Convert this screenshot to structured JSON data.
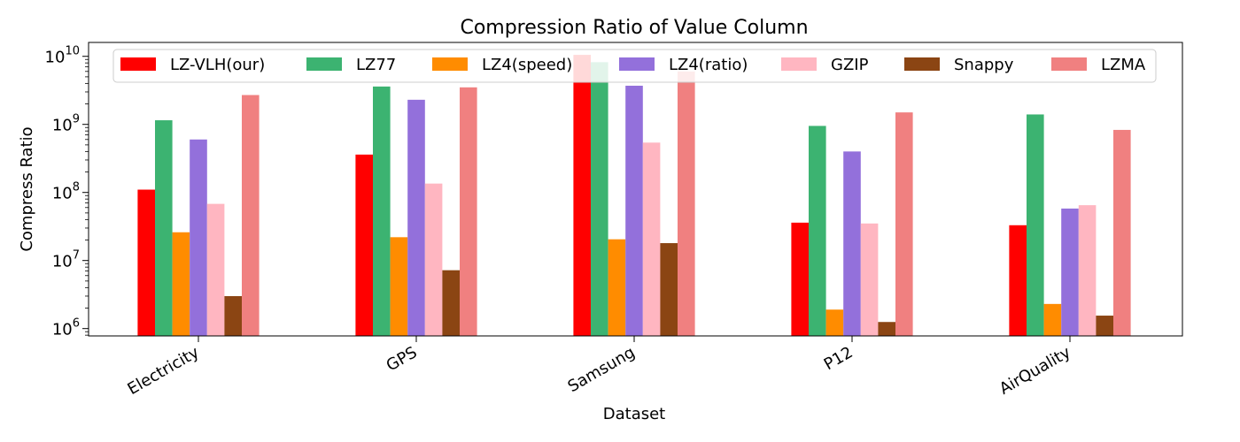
{
  "chart_data": {
    "type": "bar",
    "title": "Compression Ratio of Value Column",
    "xlabel": "Dataset",
    "ylabel": "Compress Ratio",
    "y_scale": "log",
    "ylim": [
      780000,
      16000000000
    ],
    "y_ticks": [
      {
        "value": 1000000,
        "base": "10",
        "exp": "6"
      },
      {
        "value": 10000000,
        "base": "10",
        "exp": "7"
      },
      {
        "value": 100000000,
        "base": "10",
        "exp": "8"
      },
      {
        "value": 1000000000,
        "base": "10",
        "exp": "9"
      },
      {
        "value": 10000000000,
        "base": "10",
        "exp": "10"
      }
    ],
    "categories": [
      "Electricity",
      "GPS",
      "Samsung",
      "P12",
      "AirQuality"
    ],
    "series": [
      {
        "name": "LZ-VLH(our)",
        "color": "#ff0000",
        "values": [
          110000000,
          360000000,
          10500000000,
          36000000,
          33000000
        ]
      },
      {
        "name": "LZ77",
        "color": "#3cb371",
        "values": [
          1150000000,
          3600000000,
          8200000000,
          950000000,
          1400000000
        ]
      },
      {
        "name": "LZ4(speed)",
        "color": "#ff8c00",
        "values": [
          26000000,
          22000000,
          20500000,
          1900000,
          2300000
        ]
      },
      {
        "name": "LZ4(ratio)",
        "color": "#9370db",
        "values": [
          600000000,
          2300000000,
          3700000000,
          400000000,
          58000000
        ]
      },
      {
        "name": "GZIP",
        "color": "#ffb6c1",
        "values": [
          68000000,
          135000000,
          540000000,
          35000000,
          65000000
        ]
      },
      {
        "name": "Snappy",
        "color": "#8b4513",
        "values": [
          3000000,
          7200000,
          18000000,
          1250000,
          1550000
        ]
      },
      {
        "name": "LZMA",
        "color": "#f08080",
        "values": [
          2700000000,
          3500000000,
          6000000000,
          1500000000,
          830000000
        ]
      }
    ],
    "legend_position": "top-inside",
    "grid": false
  }
}
